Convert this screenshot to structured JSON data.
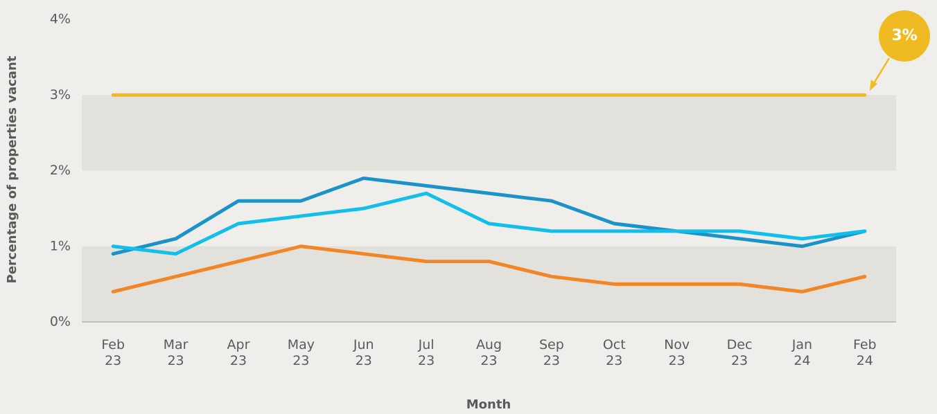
{
  "chart_data": {
    "type": "line",
    "y_label": "Percentage of properties vacant",
    "x_label": "Month",
    "categories": [
      "Feb 23",
      "Mar 23",
      "Apr 23",
      "May 23",
      "Jun 23",
      "Jul 23",
      "Aug 23",
      "Sep 23",
      "Oct 23",
      "Nov 23",
      "Dec 23",
      "Jan 24",
      "Feb 24"
    ],
    "series": [
      {
        "color": "#1b93c8",
        "values": [
          0.9,
          1.1,
          1.6,
          1.6,
          1.9,
          1.8,
          1.7,
          1.6,
          1.3,
          1.2,
          1.1,
          1.0,
          1.2
        ]
      },
      {
        "color": "#12bfea",
        "values": [
          1.0,
          0.9,
          1.3,
          1.4,
          1.5,
          1.7,
          1.3,
          1.2,
          1.2,
          1.2,
          1.2,
          1.1,
          1.2
        ]
      },
      {
        "color": "#f28626",
        "values": [
          0.4,
          0.6,
          0.8,
          1.0,
          0.9,
          0.8,
          0.8,
          0.6,
          0.5,
          0.5,
          0.5,
          0.4,
          0.6
        ]
      },
      {
        "color": "#f0bb22",
        "values": [
          3,
          3,
          3,
          3,
          3,
          3,
          3,
          3,
          3,
          3,
          3,
          3,
          3
        ]
      }
    ],
    "annotation": "3%",
    "ylim": [
      0,
      4
    ],
    "yticks": [
      {
        "value": 0,
        "label": "0%"
      },
      {
        "value": 1,
        "label": "1%"
      },
      {
        "value": 2,
        "label": "2%"
      },
      {
        "value": 3,
        "label": "3%"
      },
      {
        "value": 4,
        "label": "4%"
      }
    ]
  }
}
